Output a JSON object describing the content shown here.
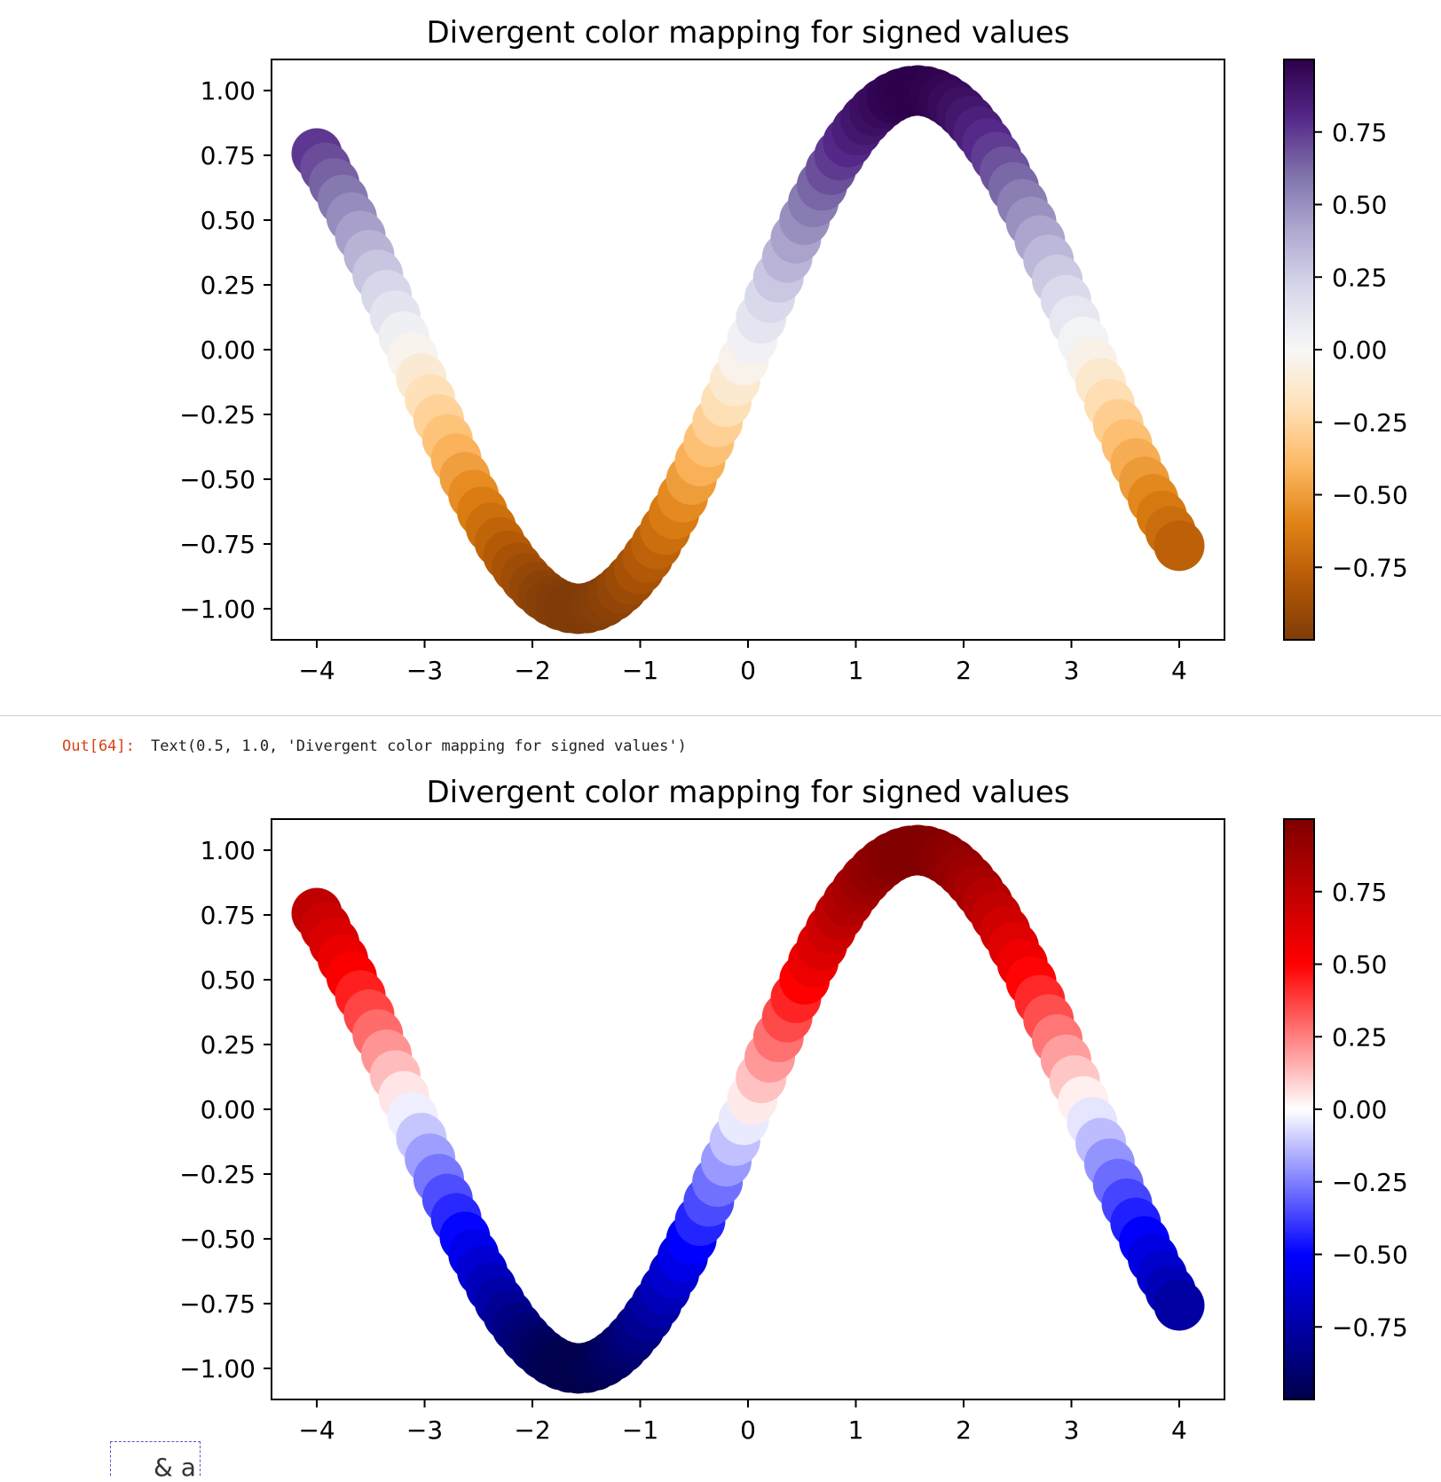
{
  "chart_data": [
    {
      "type": "scatter",
      "title": "Divergent color mapping for signed values",
      "colormap": "PuOr",
      "colormap_stops": [
        "#7f3b08",
        "#b35806",
        "#e08214",
        "#fdb863",
        "#fee0b6",
        "#f7f7f7",
        "#d8daeb",
        "#b2abd2",
        "#8073ac",
        "#542788",
        "#2d004b"
      ],
      "x_function": "x from -4 to 4",
      "y_function": "sin(x)",
      "color_value": "sin(x)",
      "xlim": [
        -4.42,
        4.42
      ],
      "ylim": [
        -1.12,
        1.12
      ],
      "xticks": [
        -4,
        -3,
        -2,
        -1,
        0,
        1,
        2,
        3,
        4
      ],
      "xtick_labels": [
        "−4",
        "−3",
        "−2",
        "−1",
        "0",
        "1",
        "2",
        "3",
        "4"
      ],
      "yticks": [
        1.0,
        0.75,
        0.5,
        0.25,
        0.0,
        -0.25,
        -0.5,
        -0.75,
        -1.0
      ],
      "ytick_labels": [
        "1.00",
        "0.75",
        "0.50",
        "0.25",
        "0.00",
        "−0.25",
        "−0.50",
        "−0.75",
        "−1.00"
      ],
      "colorbar_range": [
        -1.0,
        1.0
      ],
      "colorbar_ticks": [
        0.75,
        0.5,
        0.25,
        0.0,
        -0.25,
        -0.5,
        -0.75
      ],
      "colorbar_tick_labels": [
        "0.75",
        "0.50",
        "0.25",
        "0.00",
        "−0.25",
        "−0.50",
        "−0.75"
      ]
    },
    {
      "type": "scatter",
      "title": "Divergent color mapping for signed values",
      "colormap": "seismic",
      "colormap_stops": [
        "#00004c",
        "#0000ff",
        "#ffffff",
        "#ff0000",
        "#800000"
      ],
      "x_function": "x from -4 to 4",
      "y_function": "sin(x)",
      "color_value": "sin(x)",
      "xlim": [
        -4.42,
        4.42
      ],
      "ylim": [
        -1.12,
        1.12
      ],
      "xticks": [
        -4,
        -3,
        -2,
        -1,
        0,
        1,
        2,
        3,
        4
      ],
      "xtick_labels": [
        "−4",
        "−3",
        "−2",
        "−1",
        "0",
        "1",
        "2",
        "3",
        "4"
      ],
      "yticks": [
        1.0,
        0.75,
        0.5,
        0.25,
        0.0,
        -0.25,
        -0.5,
        -0.75,
        -1.0
      ],
      "ytick_labels": [
        "1.00",
        "0.75",
        "0.50",
        "0.25",
        "0.00",
        "−0.25",
        "−0.50",
        "−0.75",
        "−1.00"
      ],
      "colorbar_range": [
        -1.0,
        1.0
      ],
      "colorbar_ticks": [
        0.75,
        0.5,
        0.25,
        0.0,
        -0.25,
        -0.5,
        -0.75
      ],
      "colorbar_tick_labels": [
        "0.75",
        "0.50",
        "0.25",
        "0.00",
        "−0.25",
        "−0.50",
        "−0.75"
      ]
    }
  ],
  "output_cell": {
    "prompt": "Out[64]:",
    "text": "Text(0.5, 1.0, 'Divergent color mapping for signed values')"
  },
  "fragment": {
    "text": "& a"
  }
}
